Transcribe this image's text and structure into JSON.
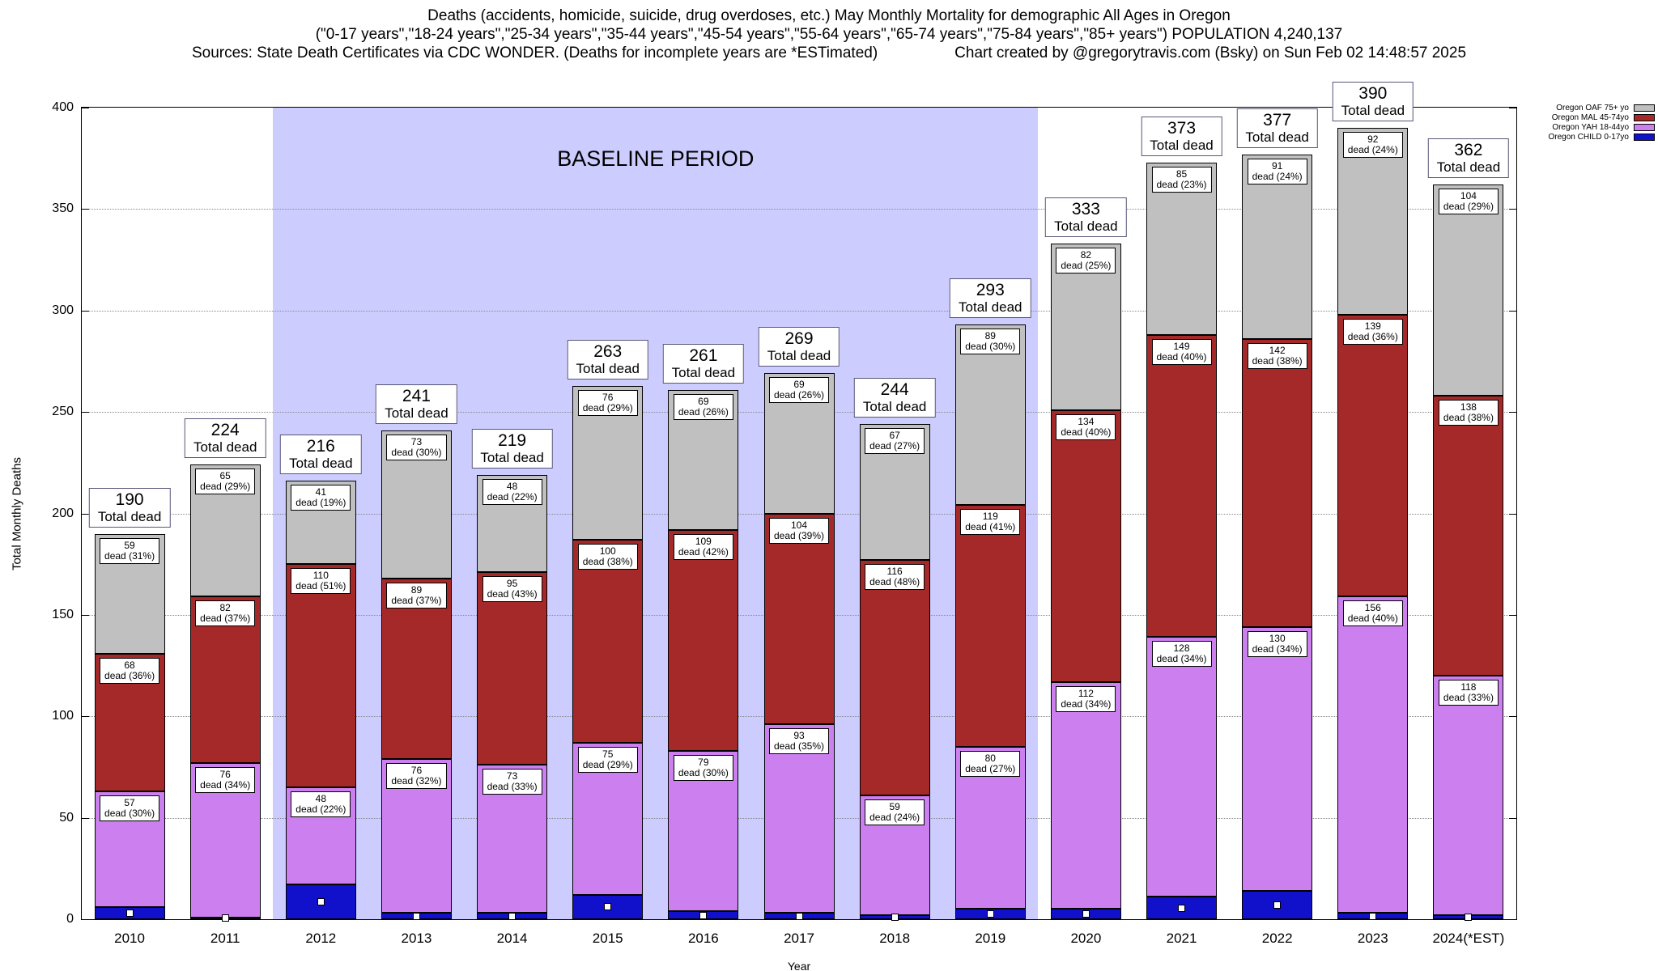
{
  "header": {
    "line1": "Deaths (accidents, homicide, suicide, drug overdoses, etc.) May Monthly Mortality for demographic All Ages in Oregon",
    "line2": "(\"0-17 years\",\"18-24 years\",\"25-34 years\",\"35-44 years\",\"45-54 years\",\"55-64 years\",\"65-74 years\",\"75-84 years\",\"85+ years\") POPULATION 4,240,137",
    "sources": "Sources: State Death Certificates via CDC WONDER. (Deaths for incomplete years are *ESTimated)",
    "credit": "Chart created by @gregorytravis.com (Bsky) on Sun Feb 02 14:48:57 2025"
  },
  "chart_data": {
    "type": "bar",
    "stacked": true,
    "xlabel": "Year",
    "ylabel": "Total Monthly Deaths",
    "ylim": [
      0,
      400
    ],
    "yticks": [
      0,
      50,
      100,
      150,
      200,
      250,
      300,
      350,
      400
    ],
    "grid": true,
    "legend_position": "top-right-outside",
    "total_label_suffix": "Total dead",
    "baseline_period": {
      "label": "BASELINE PERIOD",
      "from_category": "2012",
      "to_category": "2019",
      "color": "#ccccff"
    },
    "categories": [
      "2010",
      "2011",
      "2012",
      "2013",
      "2014",
      "2015",
      "2016",
      "2017",
      "2018",
      "2019",
      "2020",
      "2021",
      "2022",
      "2023",
      "2024(*EST)"
    ],
    "totals": [
      190,
      224,
      216,
      241,
      219,
      263,
      261,
      269,
      244,
      293,
      333,
      373,
      377,
      390,
      362
    ],
    "series": [
      {
        "key": "child",
        "name": "Oregon CHILD 0-17yo",
        "color": "#1111cc",
        "marker": "small-white-square",
        "values": [
          6,
          1,
          17,
          3,
          3,
          12,
          4,
          3,
          2,
          5,
          5,
          11,
          14,
          3,
          2
        ]
      },
      {
        "key": "yah",
        "name": "Oregon YAH 18-44yo",
        "color": "#cc80f0",
        "values": [
          57,
          76,
          48,
          76,
          73,
          75,
          79,
          93,
          59,
          80,
          112,
          128,
          130,
          156,
          118
        ],
        "percents": [
          30,
          34,
          22,
          32,
          33,
          29,
          30,
          35,
          24,
          27,
          34,
          34,
          34,
          40,
          33
        ]
      },
      {
        "key": "mal",
        "name": "Oregon MAL 45-74yo",
        "color": "#a62929",
        "values": [
          68,
          82,
          110,
          89,
          95,
          100,
          109,
          104,
          116,
          119,
          134,
          149,
          142,
          139,
          138
        ],
        "percents": [
          36,
          37,
          51,
          37,
          43,
          38,
          42,
          39,
          48,
          41,
          40,
          40,
          38,
          36,
          38
        ]
      },
      {
        "key": "oaf",
        "name": "Oregon OAF 75+ yo",
        "color": "#c0c0c0",
        "values": [
          59,
          65,
          41,
          73,
          48,
          76,
          69,
          69,
          67,
          89,
          82,
          85,
          91,
          92,
          104
        ],
        "percents": [
          31,
          29,
          19,
          30,
          22,
          29,
          26,
          26,
          27,
          30,
          25,
          23,
          24,
          24,
          29
        ]
      }
    ],
    "legend": [
      {
        "label": "Oregon OAF 75+ yo",
        "color": "#c0c0c0"
      },
      {
        "label": "Oregon MAL 45-74yo",
        "color": "#a62929"
      },
      {
        "label": "Oregon YAH 18-44yo",
        "color": "#cc80f0"
      },
      {
        "label": "Oregon CHILD 0-17yo",
        "color": "#1111cc"
      }
    ]
  }
}
